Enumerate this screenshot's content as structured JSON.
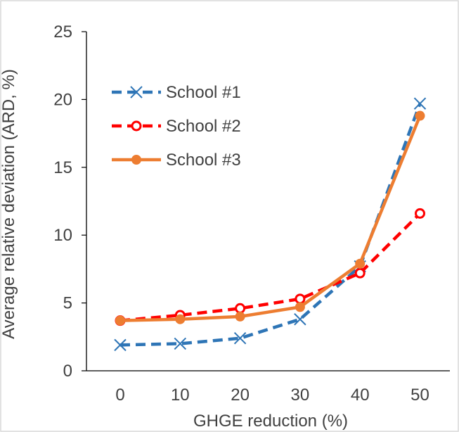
{
  "chart_data": {
    "type": "line",
    "title": "",
    "xlabel": "GHGE reduction (%)",
    "ylabel": "Average relative deviation (ARD, %)",
    "x": [
      0,
      10,
      20,
      30,
      40,
      50
    ],
    "xticks": [
      "0",
      "10",
      "20",
      "30",
      "40",
      "50"
    ],
    "yticks": [
      "0",
      "5",
      "10",
      "15",
      "20",
      "25"
    ],
    "ylim": [
      0,
      25
    ],
    "grid": false,
    "legend_position": "top-left",
    "series": [
      {
        "name": "School #1",
        "values": [
          1.9,
          2.0,
          2.4,
          3.8,
          7.7,
          19.7
        ],
        "color": "#2e75b6",
        "dash": "dashed",
        "marker": "x"
      },
      {
        "name": "School #2",
        "values": [
          3.7,
          4.1,
          4.6,
          5.3,
          7.2,
          11.6
        ],
        "color": "#ff0000",
        "dash": "dashed",
        "marker": "open-circle"
      },
      {
        "name": "School #3",
        "values": [
          3.7,
          3.8,
          4.0,
          4.7,
          7.9,
          18.8
        ],
        "color": "#ed7d31",
        "dash": "solid",
        "marker": "filled-circle"
      }
    ]
  }
}
